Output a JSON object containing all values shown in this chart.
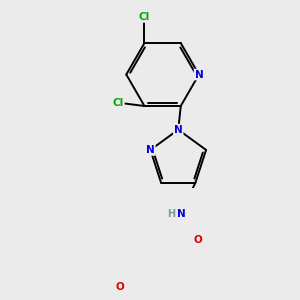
{
  "bg_color": "#ebebeb",
  "bond_color": "#000000",
  "bond_width": 1.4,
  "atom_colors": {
    "N": "#0000dd",
    "O": "#dd0000",
    "Cl": "#00aa00",
    "C": "#000000",
    "H": "#7a9a9a"
  },
  "font_size": 7.5,
  "figsize": [
    3.0,
    3.0
  ],
  "dpi": 100
}
